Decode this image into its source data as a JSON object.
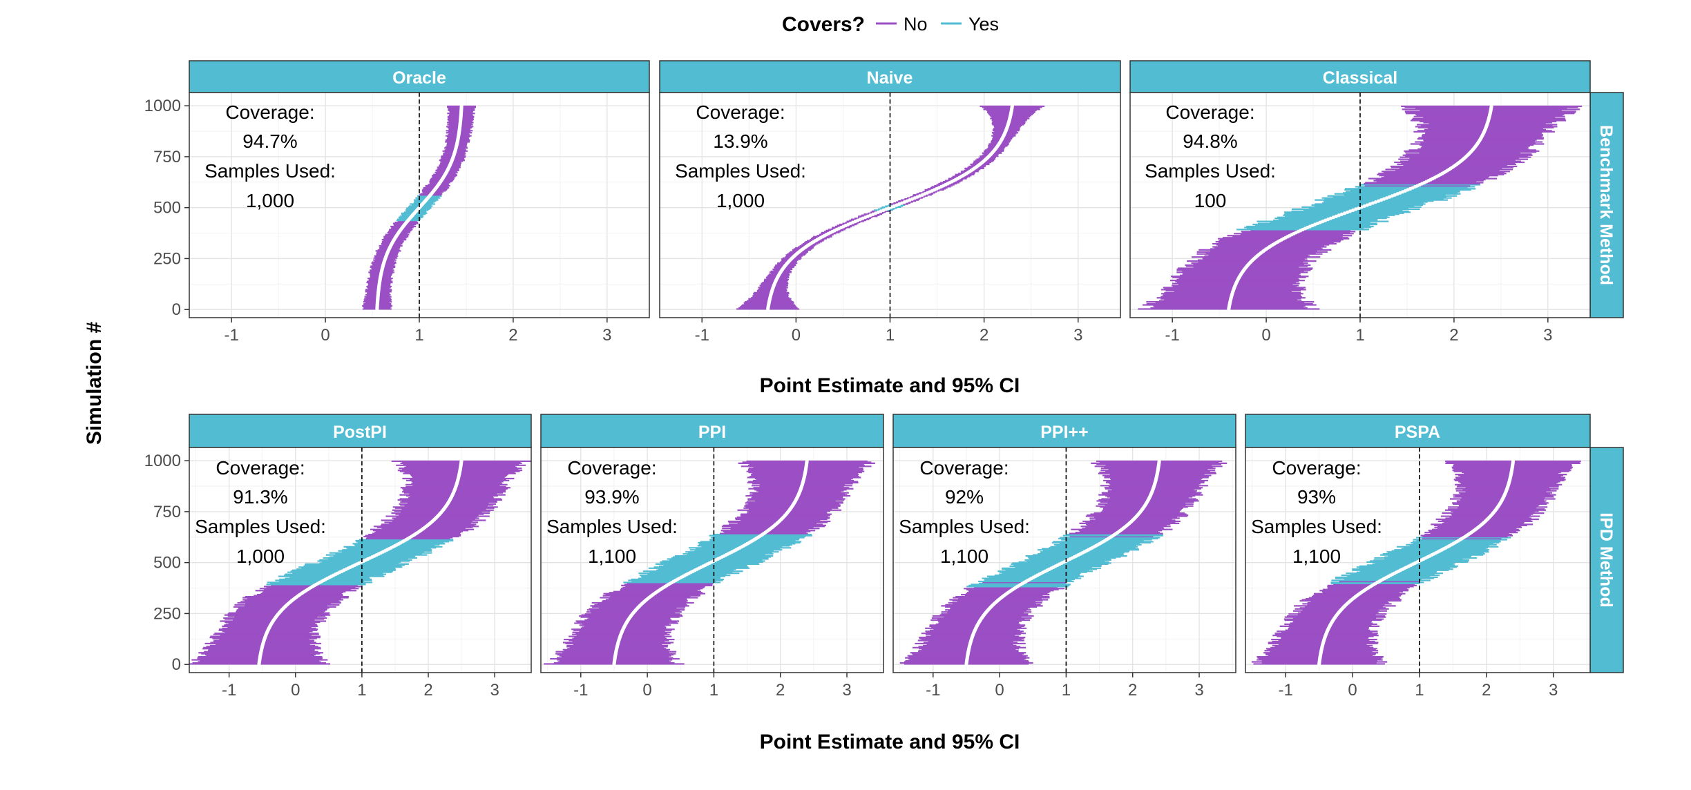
{
  "chart_data": {
    "type": "interval",
    "legend": {
      "title": "Covers?",
      "position": "top",
      "entries": [
        {
          "label": "No",
          "color": "#9b4fc4"
        },
        {
          "label": "Yes",
          "color": "#52bcd3"
        }
      ]
    },
    "colors": {
      "strip": "#52bcd3",
      "no": "#9b4fc4",
      "yes": "#52bcd3",
      "point": "#ffffff",
      "reference": "#000000"
    },
    "y_axis": {
      "label": "Simulation #",
      "ticks": [
        0,
        250,
        500,
        750,
        1000
      ],
      "ylim": [
        -40,
        1065
      ]
    },
    "x_axis": {
      "label": "Point Estimate and 95% CI",
      "ticks": [
        -1,
        0,
        1,
        2,
        3
      ]
    },
    "reference_line": 1,
    "rows": [
      {
        "strip": "Benchmark Method",
        "xlabel": "Point Estimate and 95% CI",
        "panels": [
          {
            "title": "Oracle",
            "coverage_label": "Coverage:",
            "coverage": "94.7%",
            "samples_label": "Samples Used:",
            "samples": "1,000",
            "xlim": [
              -1.45,
              3.45
            ],
            "est_lo": 0.55,
            "est_hi": 1.45,
            "half_width": 0.12,
            "tail_extra": 0.03
          },
          {
            "title": "Naive",
            "coverage_label": "Coverage:",
            "coverage": "13.9%",
            "samples_label": "Samples Used:",
            "samples": "1,000",
            "xlim": [
              -1.45,
              3.45
            ],
            "est_lo": -0.3,
            "est_hi": 2.3,
            "half_width": 0.09,
            "tail_extra": 0.25
          },
          {
            "title": "Classical",
            "coverage_label": "Coverage:",
            "coverage": "94.8%",
            "samples_label": "Samples Used:",
            "samples": "100",
            "xlim": [
              -1.45,
              3.45
            ],
            "est_lo": -0.4,
            "est_hi": 2.4,
            "half_width": 0.62,
            "tail_extra": 0.3
          }
        ]
      },
      {
        "strip": "IPD Method",
        "xlabel": "Point Estimate and 95% CI",
        "panels": [
          {
            "title": "PostPI",
            "coverage_label": "Coverage:",
            "coverage": "91.3%",
            "samples_label": "Samples Used:",
            "samples": "1,000",
            "xlim": [
              -1.6,
              3.55
            ],
            "est_lo": -0.55,
            "est_hi": 2.5,
            "half_width": 0.7,
            "tail_extra": 0.3
          },
          {
            "title": "PPI",
            "coverage_label": "Coverage:",
            "coverage": "93.9%",
            "samples_label": "Samples Used:",
            "samples": "1,100",
            "xlim": [
              -1.6,
              3.55
            ],
            "est_lo": -0.5,
            "est_hi": 2.4,
            "half_width": 0.68,
            "tail_extra": 0.3
          },
          {
            "title": "PPI++",
            "coverage_label": "Coverage:",
            "coverage": "92%",
            "samples_label": "Samples Used:",
            "samples": "1,100",
            "xlim": [
              -1.6,
              3.55
            ],
            "est_lo": -0.5,
            "est_hi": 2.4,
            "half_width": 0.67,
            "tail_extra": 0.3
          },
          {
            "title": "PSPA",
            "coverage_label": "Coverage:",
            "coverage": "93%",
            "samples_label": "Samples Used:",
            "samples": "1,100",
            "xlim": [
              -1.6,
              3.55
            ],
            "est_lo": -0.5,
            "est_hi": 2.4,
            "half_width": 0.67,
            "tail_extra": 0.3
          }
        ]
      }
    ]
  }
}
